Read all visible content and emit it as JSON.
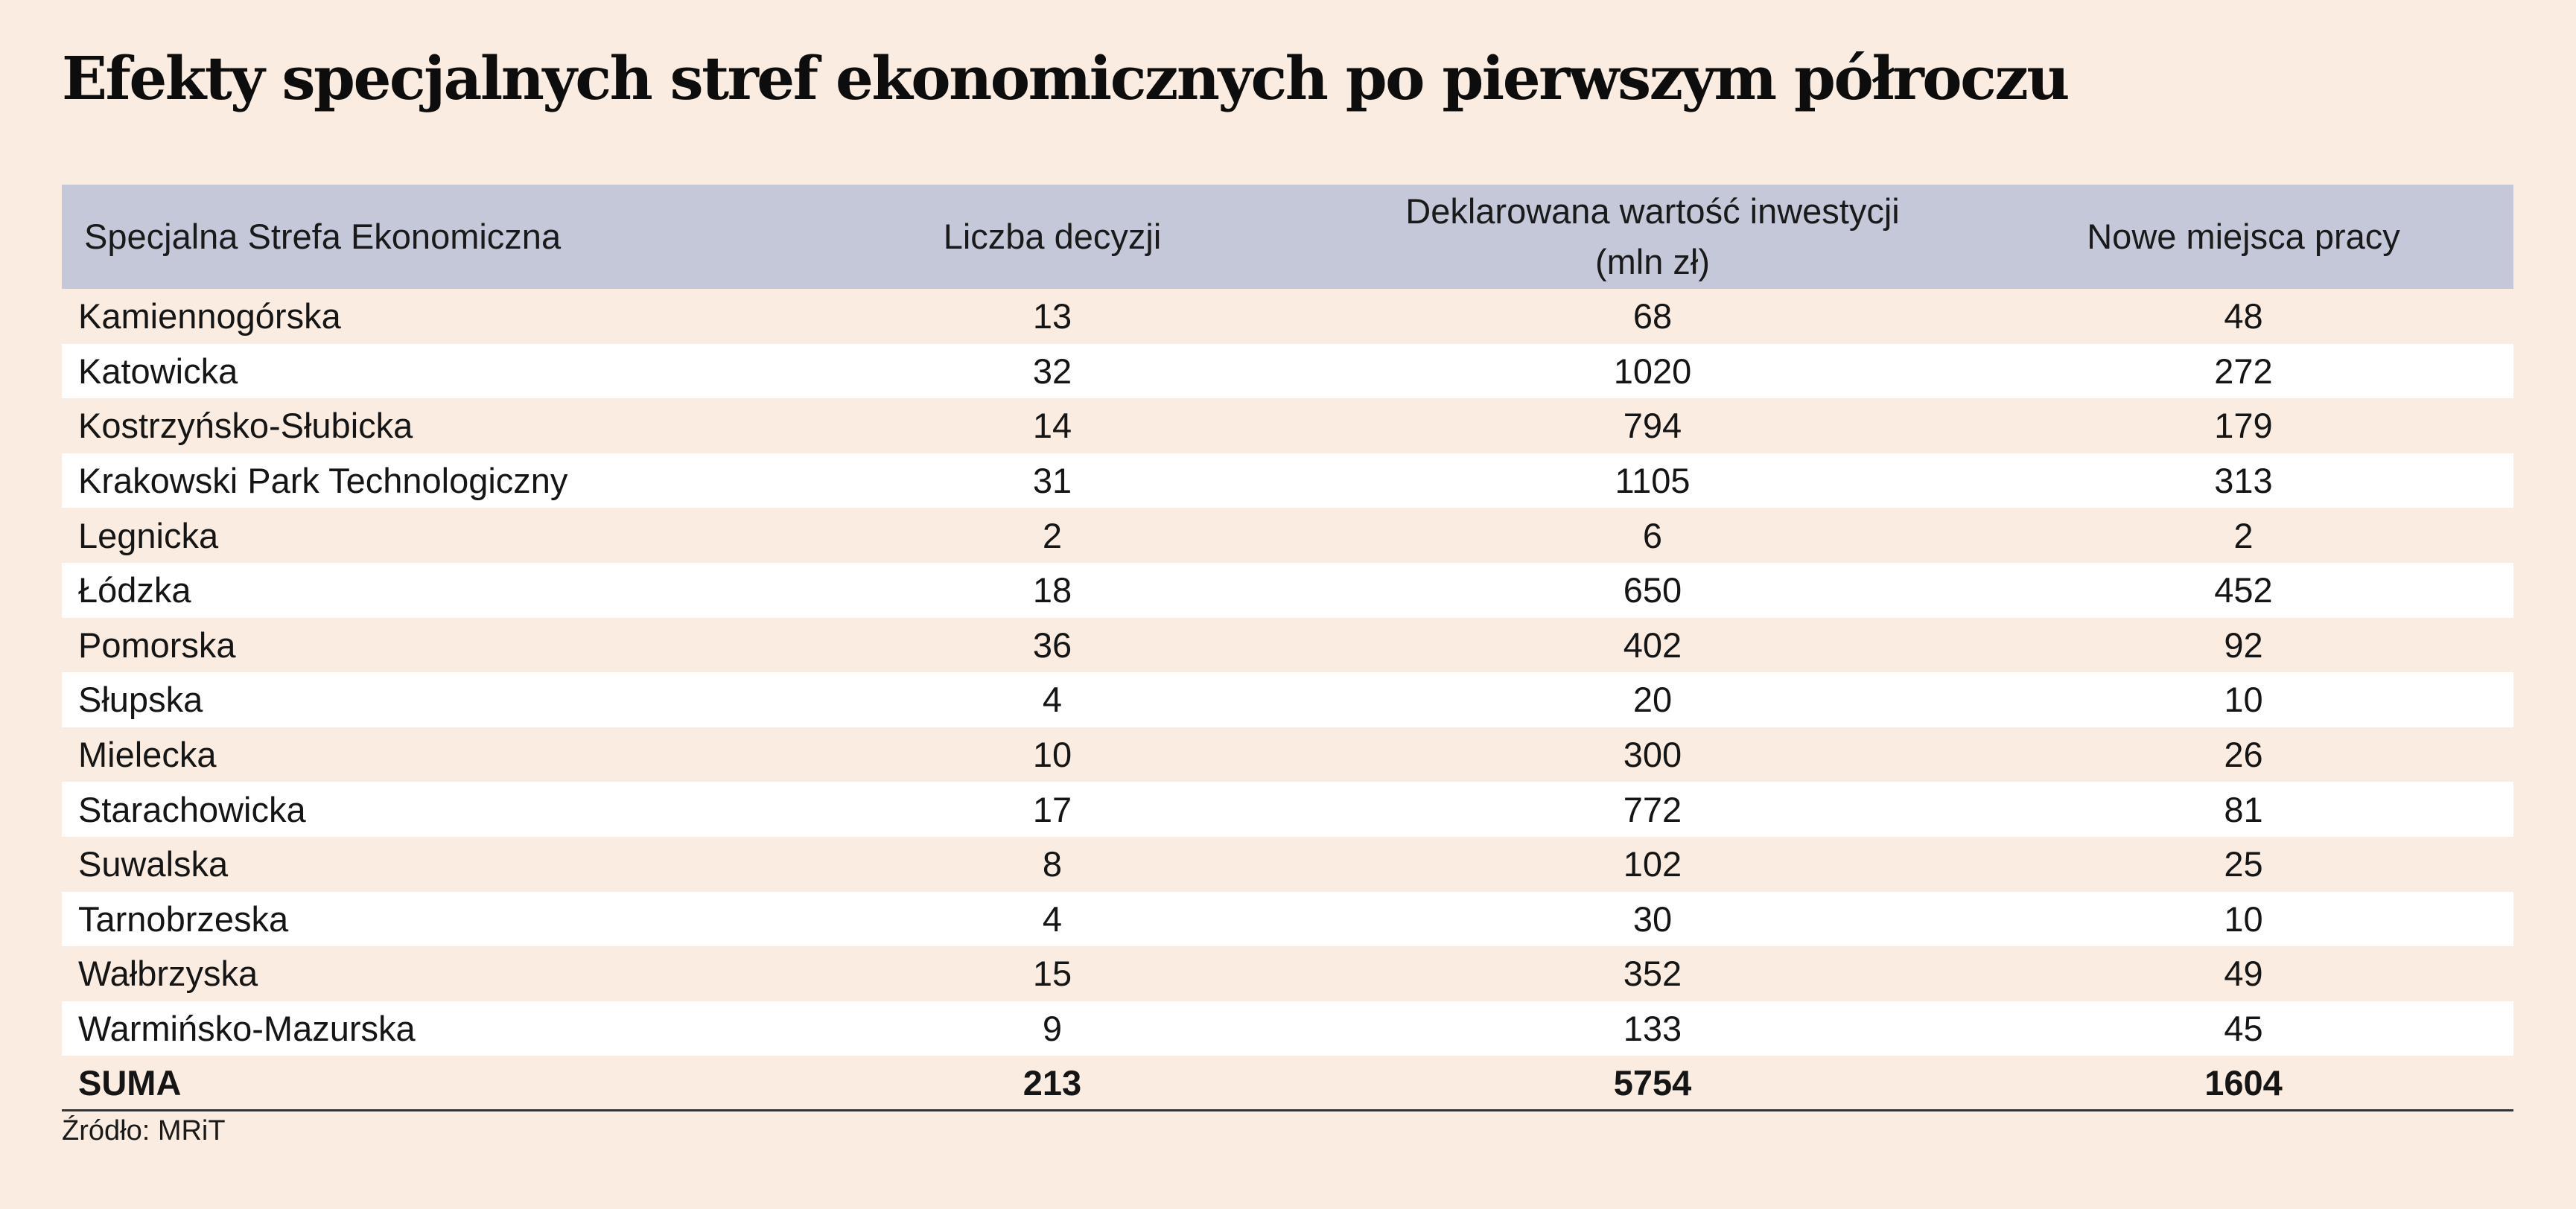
{
  "title": "Efekty specjalnych stref ekonomicznych po pierwszym półroczu",
  "source": "Źródło: MRiT",
  "colors": {
    "background": "#faece0",
    "header_background": "#c4c8d8",
    "stripe_row": "#ffffff"
  },
  "chart_data": {
    "type": "table",
    "title": "Efekty specjalnych stref ekonomicznych po pierwszym półroczu",
    "columns": [
      "Specjalna Strefa Ekonomiczna",
      "Liczba decyzji",
      "Deklarowana wartość inwestycji (mln zł)",
      "Nowe miejsca pracy"
    ],
    "header": {
      "zone": "Specjalna Strefa Ekonomiczna",
      "decisions": "Liczba decyzji",
      "investment_line1": "Deklarowana wartość inwestycji",
      "investment_line2": "(mln zł)",
      "jobs": "Nowe miejsca pracy"
    },
    "rows": [
      {
        "zone": "Kamiennogórska",
        "decisions": "13",
        "investment": "68",
        "jobs": "48"
      },
      {
        "zone": "Katowicka",
        "decisions": "32",
        "investment": "1020",
        "jobs": "272"
      },
      {
        "zone": "Kostrzyńsko-Słubicka",
        "decisions": "14",
        "investment": "794",
        "jobs": "179"
      },
      {
        "zone": "Krakowski Park Technologiczny",
        "decisions": "31",
        "investment": "1105",
        "jobs": "313"
      },
      {
        "zone": "Legnicka",
        "decisions": "2",
        "investment": "6",
        "jobs": "2"
      },
      {
        "zone": "Łódzka",
        "decisions": "18",
        "investment": "650",
        "jobs": "452"
      },
      {
        "zone": "Pomorska",
        "decisions": "36",
        "investment": "402",
        "jobs": "92"
      },
      {
        "zone": "Słupska",
        "decisions": "4",
        "investment": "20",
        "jobs": "10"
      },
      {
        "zone": "Mielecka",
        "decisions": "10",
        "investment": "300",
        "jobs": "26"
      },
      {
        "zone": "Starachowicka",
        "decisions": "17",
        "investment": "772",
        "jobs": "81"
      },
      {
        "zone": "Suwalska",
        "decisions": "8",
        "investment": "102",
        "jobs": "25"
      },
      {
        "zone": "Tarnobrzeska",
        "decisions": "4",
        "investment": "30",
        "jobs": "10"
      },
      {
        "zone": "Wałbrzyska",
        "decisions": "15",
        "investment": "352",
        "jobs": "49"
      },
      {
        "zone": "Warmińsko-Mazurska",
        "decisions": "9",
        "investment": "133",
        "jobs": "45"
      }
    ],
    "total": {
      "zone": "SUMA",
      "decisions": "213",
      "investment": "5754",
      "jobs": "1604"
    }
  }
}
